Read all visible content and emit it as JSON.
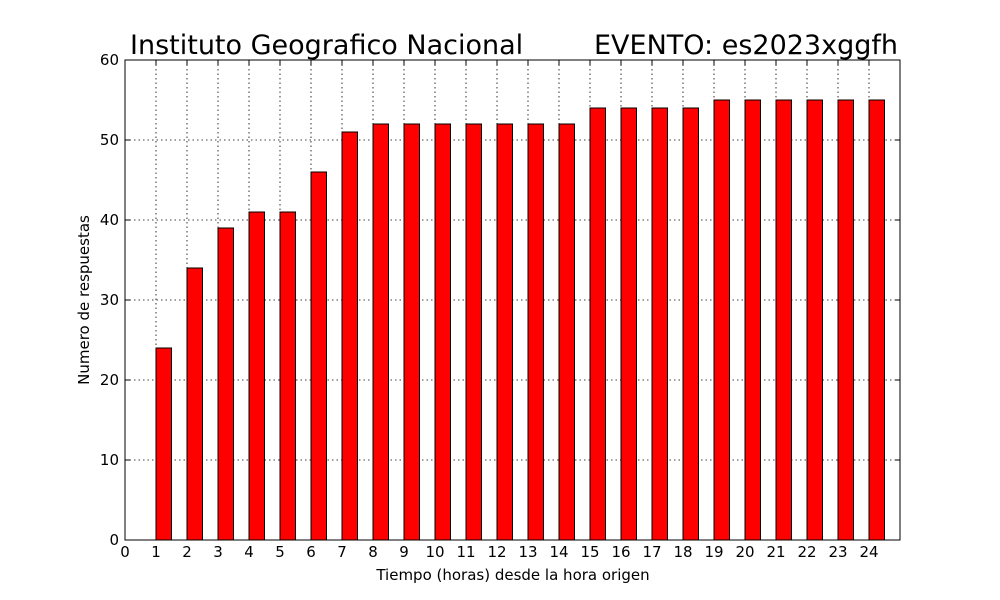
{
  "chart_data": {
    "type": "bar",
    "title_left": "Instituto Geografico Nacional",
    "title_right": "EVENTO: es2023xggfh",
    "xlabel": "Tiempo (horas) desde la hora origen",
    "ylabel": "Numero de respuestas",
    "xlim": [
      0,
      25
    ],
    "ylim": [
      0,
      60
    ],
    "xticks": [
      0,
      1,
      2,
      3,
      4,
      5,
      6,
      7,
      8,
      9,
      10,
      11,
      12,
      13,
      14,
      15,
      16,
      17,
      18,
      19,
      20,
      21,
      22,
      23,
      24
    ],
    "yticks": [
      0,
      10,
      20,
      30,
      40,
      50,
      60
    ],
    "bar_width": 0.5,
    "grid": true,
    "bar_color": "#ff0000",
    "x": [
      1,
      2,
      3,
      4,
      5,
      6,
      7,
      8,
      9,
      10,
      11,
      12,
      13,
      14,
      15,
      16,
      17,
      18,
      19,
      20,
      21,
      22,
      23,
      24
    ],
    "values": [
      24,
      34,
      39,
      41,
      41,
      46,
      51,
      52,
      52,
      52,
      52,
      52,
      52,
      52,
      54,
      54,
      54,
      54,
      55,
      55,
      55,
      55,
      55,
      55
    ]
  }
}
